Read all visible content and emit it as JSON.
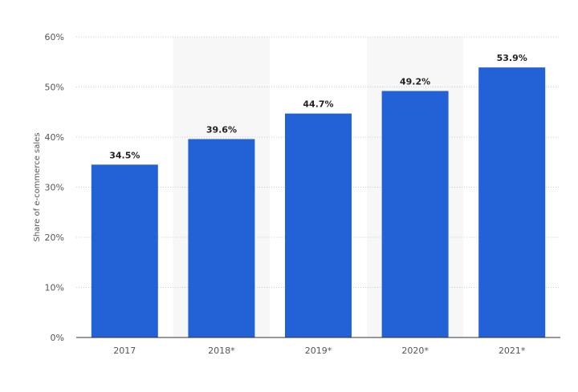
{
  "chart_data": {
    "type": "bar",
    "title": "",
    "xlabel": "",
    "ylabel": "Share of e-commerce sales",
    "categories": [
      "2017",
      "2018*",
      "2019*",
      "2020*",
      "2021*"
    ],
    "values": [
      34.5,
      39.6,
      44.7,
      49.2,
      53.9
    ],
    "data_labels": [
      "34.5%",
      "39.6%",
      "44.7%",
      "49.2%",
      "53.9%"
    ],
    "y_ticks": [
      0,
      10,
      20,
      30,
      40,
      50,
      60
    ],
    "y_tick_labels": [
      "0%",
      "10%",
      "20%",
      "30%",
      "40%",
      "50%",
      "60%"
    ],
    "ylim": [
      0,
      60
    ],
    "grid": true,
    "legend": "none",
    "alternating_band_categories": [
      "2018*",
      "2020*"
    ],
    "colors": {
      "bar": "#2262d6",
      "band": "#f7f7f7",
      "grid": "#cccccc",
      "axis": "#333333"
    }
  }
}
